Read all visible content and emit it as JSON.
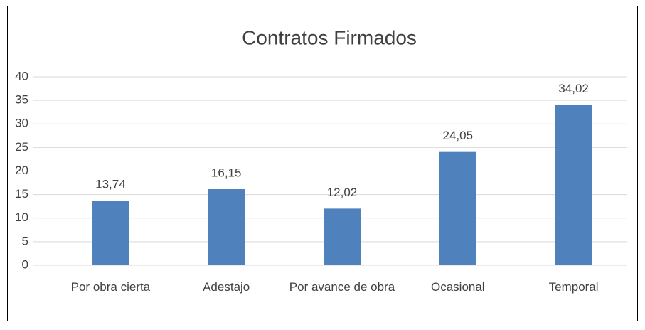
{
  "chart_data": {
    "type": "bar",
    "title": "Contratos Firmados",
    "categories": [
      "Por obra cierta",
      "Adestajo",
      "Por avance de obra",
      "Ocasional",
      "Temporal"
    ],
    "values": [
      13.74,
      16.15,
      12.02,
      24.05,
      34.02
    ],
    "value_labels": [
      "13,74",
      "16,15",
      "12,02",
      "24,05",
      "34,02"
    ],
    "color": "#4f81bd",
    "ylim": [
      0,
      40
    ],
    "yticks": [
      0,
      5,
      10,
      15,
      20,
      25,
      30,
      35,
      40
    ],
    "grid": true
  }
}
